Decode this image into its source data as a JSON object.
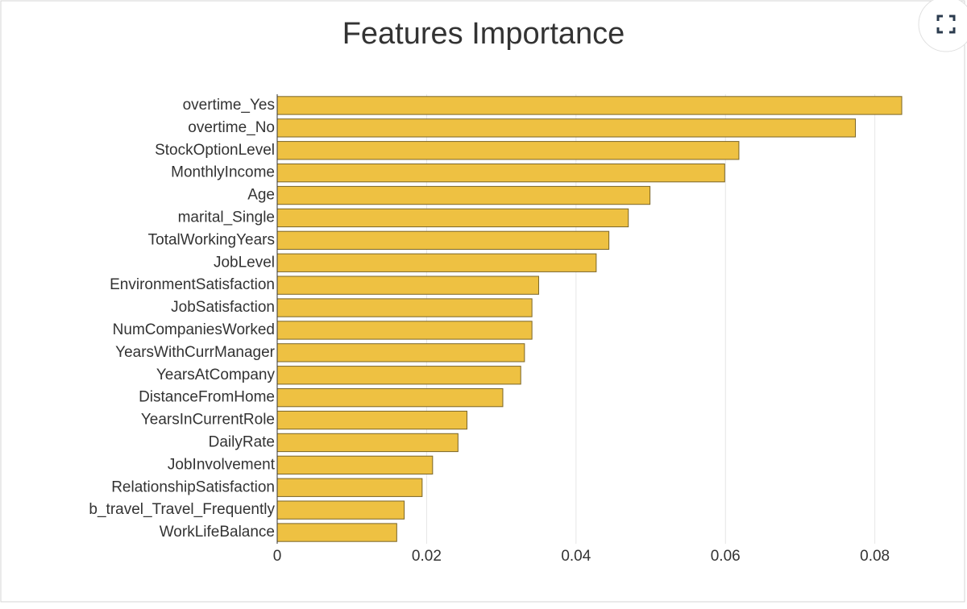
{
  "chart_data": {
    "type": "bar",
    "orientation": "horizontal",
    "title": "Features Importance",
    "categories": [
      "overtime_Yes",
      "overtime_No",
      "StockOptionLevel",
      "MonthlyIncome",
      "Age",
      "marital_Single",
      "TotalWorkingYears",
      "JobLevel",
      "EnvironmentSatisfaction",
      "JobSatisfaction",
      "NumCompaniesWorked",
      "YearsWithCurrManager",
      "YearsAtCompany",
      "DistanceFromHome",
      "YearsInCurrentRole",
      "DailyRate",
      "JobInvolvement",
      "RelationshipSatisfaction",
      "b_travel_Travel_Frequently",
      "WorkLifeBalance"
    ],
    "values": [
      0.0836,
      0.0774,
      0.0618,
      0.0599,
      0.0499,
      0.047,
      0.0444,
      0.0427,
      0.035,
      0.0341,
      0.0341,
      0.0331,
      0.0326,
      0.0302,
      0.0254,
      0.0242,
      0.0208,
      0.0194,
      0.017,
      0.016
    ],
    "color": "#eec142",
    "xlim": [
      0,
      0.085
    ],
    "xticks": [
      0,
      0.02,
      0.04,
      0.06,
      0.08
    ],
    "grid": true
  }
}
